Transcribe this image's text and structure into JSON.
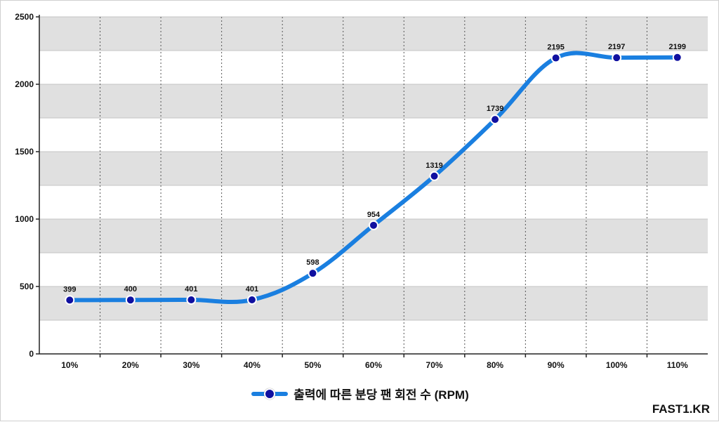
{
  "chart_data": {
    "type": "line",
    "categories": [
      "10%",
      "20%",
      "30%",
      "40%",
      "50%",
      "60%",
      "70%",
      "80%",
      "90%",
      "100%",
      "110%"
    ],
    "series": [
      {
        "name": "출력에 따른 분당 팬 회전 수 (RPM)",
        "values": [
          399,
          400,
          401,
          401,
          598,
          954,
          1319,
          1739,
          2195,
          2197,
          2199
        ]
      }
    ],
    "y_ticks": [
      0,
      500,
      1000,
      1500,
      2000,
      2500
    ],
    "ylim": [
      0,
      2500
    ],
    "grid": true,
    "legend_position": "bottom-center",
    "colors": {
      "line": "#1a7fe0",
      "marker": "#1010a0",
      "band": "#e0e0e0"
    }
  },
  "legend": {
    "label": "출력에 따른 분당 팬 회전 수 (RPM)"
  },
  "watermark": "FAST1.KR"
}
